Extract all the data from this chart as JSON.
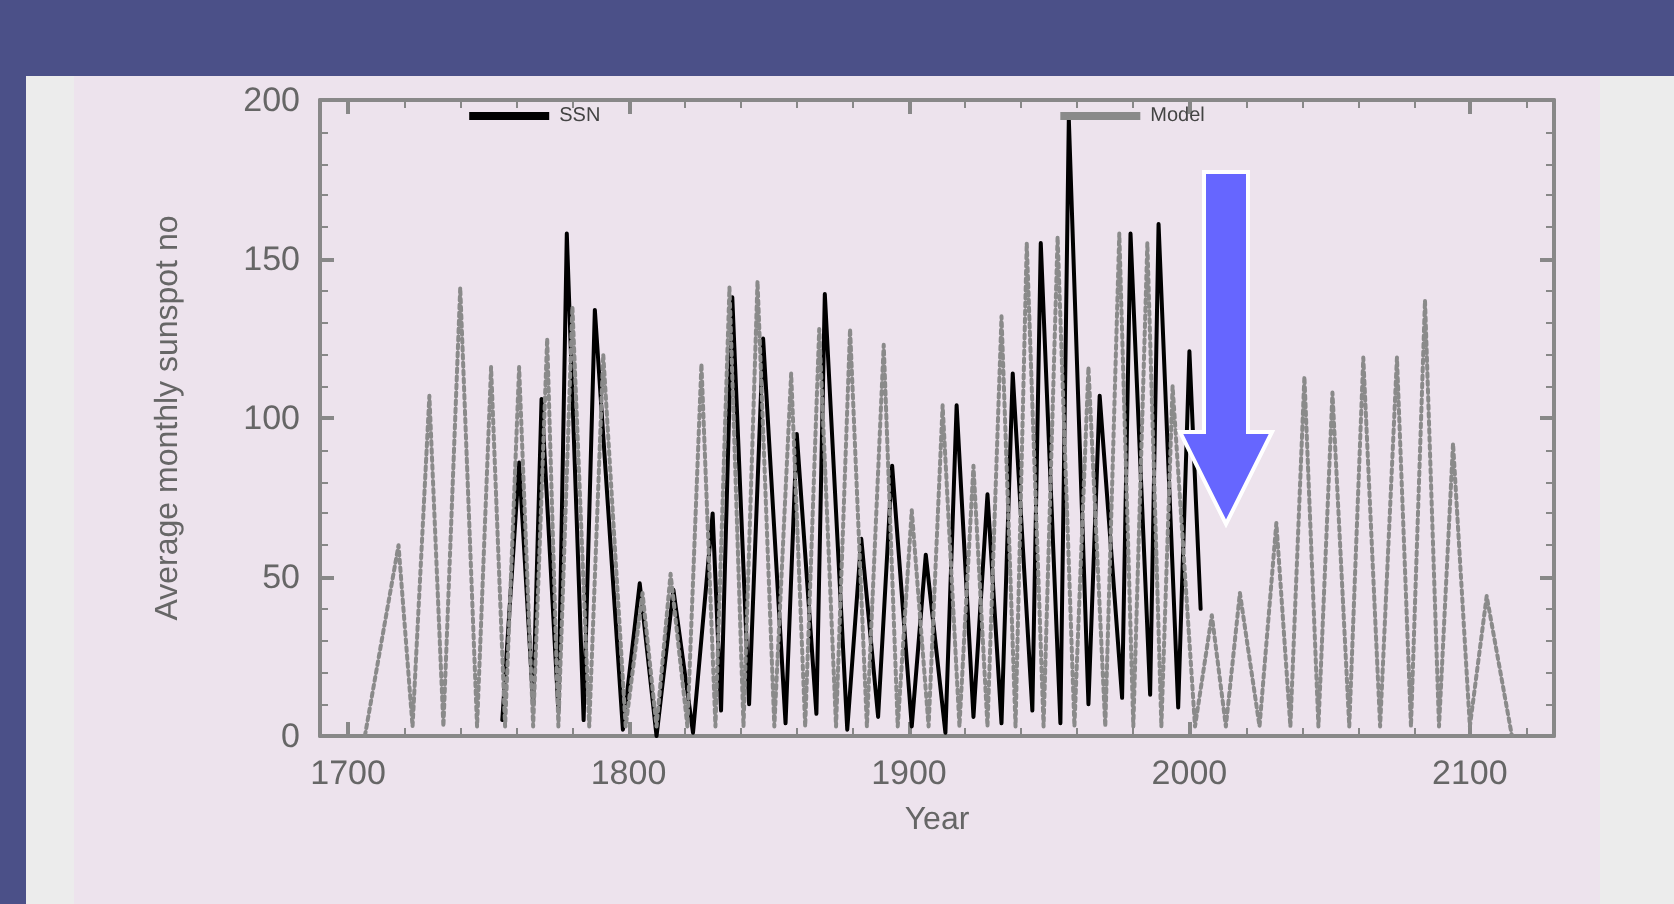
{
  "chart_data": {
    "type": "line",
    "xlabel": "Year",
    "ylabel": "Average monthly sunspot no",
    "xlim": [
      1690,
      2130
    ],
    "xticks": [
      1700,
      1800,
      1900,
      2000,
      2100
    ],
    "ylim": [
      0,
      200
    ],
    "yticks": [
      0,
      50,
      100,
      150,
      200
    ],
    "grid": false,
    "legend": "top",
    "marker": "none",
    "series": [
      {
        "name": "SSN",
        "color": "#000000",
        "line_style": "solid",
        "x": [
          1755,
          1761,
          1766,
          1769,
          1775,
          1778,
          1784,
          1788,
          1798,
          1804,
          1810,
          1816,
          1823,
          1830,
          1833,
          1837,
          1843,
          1848,
          1856,
          1860,
          1867,
          1870,
          1878,
          1883,
          1889,
          1894,
          1901,
          1906,
          1913,
          1917,
          1923,
          1928,
          1933,
          1937,
          1944,
          1947,
          1954,
          1957,
          1964,
          1968,
          1976,
          1979,
          1986,
          1989,
          1996,
          2000,
          2004
        ],
        "values": [
          5,
          86,
          10,
          106,
          8,
          158,
          5,
          134,
          2,
          48,
          0,
          46,
          1,
          70,
          8,
          138,
          10,
          125,
          4,
          95,
          7,
          139,
          2,
          62,
          6,
          85,
          3,
          57,
          1,
          104,
          6,
          76,
          4,
          114,
          8,
          155,
          4,
          194,
          10,
          107,
          12,
          158,
          13,
          161,
          9,
          121,
          40
        ]
      },
      {
        "name": "Model",
        "color": "#8a8a8a",
        "line_style": "dotted",
        "x": [
          1706,
          1718,
          1723,
          1729,
          1734,
          1740,
          1746,
          1751,
          1756,
          1761,
          1766,
          1771,
          1775,
          1780,
          1786,
          1791,
          1799,
          1805,
          1810,
          1815,
          1821,
          1826,
          1831,
          1836,
          1841,
          1846,
          1852,
          1858,
          1863,
          1868,
          1874,
          1879,
          1885,
          1891,
          1896,
          1901,
          1907,
          1912,
          1918,
          1923,
          1928,
          1933,
          1938,
          1942,
          1948,
          1953,
          1959,
          1964,
          1970,
          1975,
          1980,
          1985,
          1990,
          1994,
          2002,
          2008,
          2013,
          2018,
          2025,
          2031,
          2036,
          2041,
          2046,
          2051,
          2057,
          2062,
          2068,
          2074,
          2079,
          2084,
          2089,
          2094,
          2100,
          2106,
          2115
        ],
        "values": [
          0,
          60,
          3,
          107,
          3,
          141,
          3,
          116,
          3,
          116,
          3,
          125,
          3,
          135,
          3,
          120,
          3,
          45,
          3,
          51,
          3,
          117,
          3,
          141,
          3,
          143,
          3,
          114,
          3,
          128,
          3,
          128,
          3,
          123,
          3,
          71,
          3,
          104,
          3,
          85,
          3,
          132,
          3,
          155,
          3,
          157,
          3,
          116,
          3,
          158,
          3,
          155,
          3,
          110,
          3,
          38,
          3,
          45,
          3,
          67,
          3,
          113,
          3,
          108,
          3,
          119,
          3,
          119,
          3,
          137,
          3,
          92,
          3,
          44,
          0
        ]
      }
    ]
  }
}
